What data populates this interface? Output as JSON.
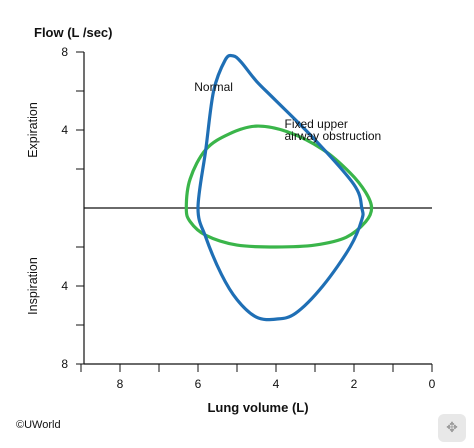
{
  "chart_data": {
    "type": "line",
    "title": "",
    "ylabel": "Flow (L /sec)",
    "xlabel": "Lung volume (L)",
    "expiration_label": "Expiration",
    "inspiration_label": "Inspiration",
    "x_ticks": [
      "8",
      "6",
      "4",
      "2",
      "0"
    ],
    "y_ticks_expiration": [
      "8",
      "4"
    ],
    "y_ticks_inspiration": [
      "4",
      "8"
    ],
    "xlim": [
      9,
      0
    ],
    "ylim": [
      -8,
      8
    ],
    "x_reversed": true,
    "series": [
      {
        "name": "Normal",
        "color": "#1f6fb5",
        "x": [
          6.0,
          5.8,
          5.6,
          5.3,
          5.1,
          4.9,
          4.5,
          4.0,
          3.0,
          2.0,
          1.8,
          1.8,
          2.1,
          2.8,
          3.5,
          4.0,
          4.5,
          5.0,
          5.4,
          5.8,
          6.0
        ],
        "y": [
          0.0,
          3.0,
          6.0,
          7.6,
          7.8,
          7.5,
          6.5,
          5.5,
          3.5,
          1.2,
          0.0,
          -0.6,
          -2.0,
          -4.0,
          -5.4,
          -5.7,
          -5.6,
          -4.7,
          -3.4,
          -1.5,
          0.0
        ]
      },
      {
        "name": "Fixed upper airway obstruction",
        "color": "#3ab54a",
        "x": [
          6.3,
          6.2,
          5.8,
          5.2,
          4.5,
          3.7,
          2.8,
          2.1,
          1.7,
          1.55,
          1.7,
          2.2,
          3.0,
          4.0,
          5.0,
          5.8,
          6.2,
          6.3
        ],
        "y": [
          0.0,
          1.5,
          3.0,
          3.8,
          4.2,
          3.9,
          3.0,
          1.8,
          0.8,
          0.0,
          -0.7,
          -1.5,
          -1.9,
          -2.0,
          -1.9,
          -1.4,
          -0.7,
          0.0
        ]
      }
    ],
    "annotations": [
      {
        "text": "Normal",
        "x": 5.6,
        "y": 6.0
      },
      {
        "text": "Fixed upper",
        "x": 2.5,
        "y": 4.1
      },
      {
        "text": "airway obstruction",
        "x": 2.5,
        "y": 3.5
      }
    ],
    "grid": false
  },
  "footer": {
    "copyright": "©UWorld"
  },
  "corner_icon": "move-arrows-icon"
}
